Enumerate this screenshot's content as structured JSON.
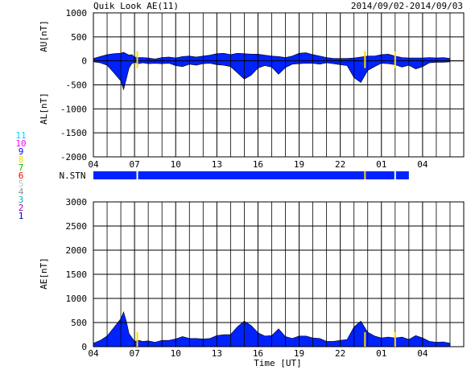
{
  "title": "Quik Look AE(11)",
  "date_range": "2014/09/02-2014/09/03",
  "x_tick_labels": [
    "04",
    "07",
    "10",
    "13",
    "16",
    "19",
    "22",
    "01",
    "04"
  ],
  "x_axis_label": "Time [UT]",
  "station_label": "N.STN",
  "station_count_legend": [
    {
      "label": "11",
      "color": "#00d8ff"
    },
    {
      "label": "10",
      "color": "#ff00ff"
    },
    {
      "label": "9",
      "color": "#0000ff"
    },
    {
      "label": "8",
      "color": "#ffd700"
    },
    {
      "label": "7",
      "color": "#00c000"
    },
    {
      "label": "6",
      "color": "#ff0000"
    },
    {
      "label": "5",
      "color": "#c0c0c0"
    },
    {
      "label": "4",
      "color": "#909090"
    },
    {
      "label": "3",
      "color": "#00b0b0"
    },
    {
      "label": "2",
      "color": "#a000a0"
    },
    {
      "label": "1",
      "color": "#0000c0"
    }
  ],
  "colors": {
    "fill": "#0022ff",
    "station_bar": "#0022ff",
    "marker": "#ffd800",
    "grid": "#000000"
  },
  "chart_data": [
    {
      "type": "area",
      "name": "AU / AL",
      "ylabel_top": "AU[nT]",
      "ylabel_bottom": "AL[nT]",
      "ylim": [
        -2000,
        1000
      ],
      "y_ticks": [
        1000,
        500,
        0,
        -500,
        -1000,
        -1500,
        -2000
      ],
      "x_hours": [
        0,
        0.5,
        1,
        1.5,
        2,
        2.2,
        2.4,
        2.6,
        2.8,
        3,
        3.3,
        3.6,
        4,
        4.5,
        5,
        5.5,
        6,
        6.5,
        7,
        7.5,
        8,
        8.5,
        9,
        9.5,
        10,
        10.5,
        11,
        11.5,
        12,
        12.5,
        13,
        13.5,
        14,
        14.5,
        15,
        15.5,
        16,
        16.5,
        17,
        17.5,
        18,
        18.5,
        19,
        19.5,
        20,
        20.5,
        21,
        21.5,
        22,
        22.5,
        23,
        23.5,
        24,
        24.5,
        25,
        25.5,
        26
      ],
      "au": [
        50,
        90,
        130,
        150,
        160,
        180,
        150,
        120,
        130,
        80,
        70,
        70,
        60,
        40,
        70,
        80,
        60,
        90,
        100,
        80,
        100,
        120,
        150,
        160,
        130,
        160,
        150,
        140,
        140,
        120,
        100,
        90,
        70,
        100,
        160,
        170,
        130,
        100,
        70,
        50,
        50,
        50,
        60,
        80,
        100,
        100,
        130,
        140,
        100,
        70,
        60,
        60,
        60,
        70,
        60,
        70,
        50
      ],
      "al": [
        -20,
        -40,
        -90,
        -250,
        -420,
        -600,
        -380,
        -150,
        -60,
        -30,
        -60,
        -40,
        -60,
        -50,
        -60,
        -50,
        -100,
        -120,
        -70,
        -90,
        -60,
        -50,
        -80,
        -90,
        -120,
        -250,
        -380,
        -300,
        -150,
        -100,
        -130,
        -280,
        -140,
        -70,
        -60,
        -50,
        -50,
        -70,
        -40,
        -60,
        -80,
        -100,
        -350,
        -450,
        -200,
        -120,
        -50,
        -60,
        -80,
        -130,
        -90,
        -170,
        -120,
        -40,
        -30,
        -30,
        -20
      ],
      "markers_x_hours": [
        3.2,
        19.8,
        22.0
      ]
    },
    {
      "type": "area",
      "name": "AE",
      "ylabel": "AE[nT]",
      "ylim": [
        0,
        3000
      ],
      "y_ticks": [
        3000,
        2500,
        2000,
        1500,
        1000,
        500,
        0
      ],
      "x_hours": [
        0,
        0.5,
        1,
        1.5,
        2,
        2.2,
        2.4,
        2.6,
        2.8,
        3,
        3.3,
        3.6,
        4,
        4.5,
        5,
        5.5,
        6,
        6.5,
        7,
        7.5,
        8,
        8.5,
        9,
        9.5,
        10,
        10.5,
        11,
        11.5,
        12,
        12.5,
        13,
        13.5,
        14,
        14.5,
        15,
        15.5,
        16,
        16.5,
        17,
        17.5,
        18,
        18.5,
        19,
        19.5,
        20,
        20.5,
        21,
        21.5,
        22,
        22.5,
        23,
        23.5,
        24,
        24.5,
        25,
        25.5,
        26
      ],
      "ae": [
        70,
        130,
        220,
        400,
        580,
        720,
        530,
        270,
        190,
        110,
        130,
        110,
        120,
        90,
        130,
        130,
        160,
        210,
        170,
        170,
        160,
        170,
        230,
        250,
        250,
        410,
        530,
        440,
        290,
        220,
        230,
        370,
        210,
        170,
        220,
        220,
        180,
        170,
        110,
        110,
        130,
        150,
        410,
        530,
        300,
        220,
        180,
        200,
        180,
        200,
        150,
        230,
        180,
        110,
        90,
        100,
        70
      ],
      "markers_x_hours": [
        3.2,
        19.8,
        22.0
      ]
    }
  ],
  "station_bar": {
    "markers_x_hours": [
      3.2,
      19.8,
      22.0
    ],
    "end_hour": 23.0
  }
}
